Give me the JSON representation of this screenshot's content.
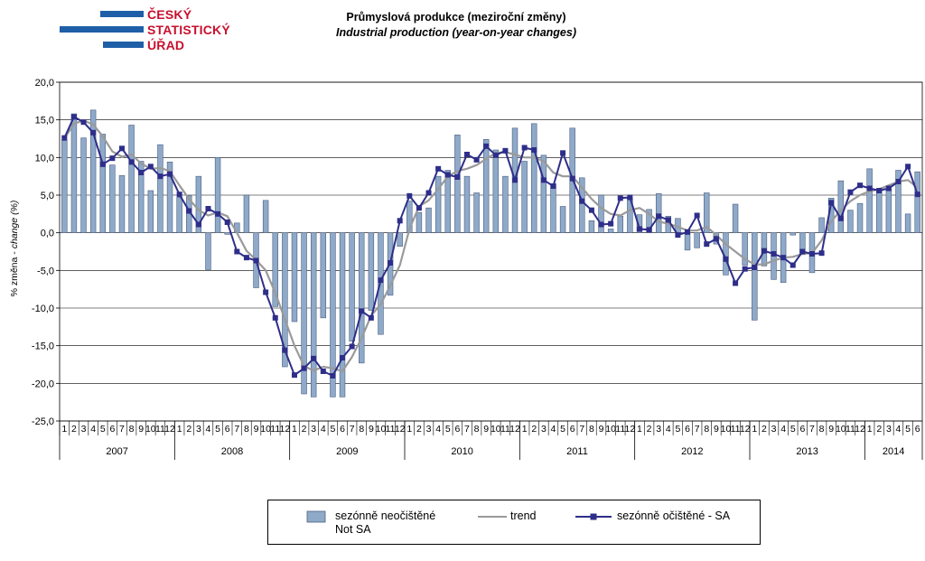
{
  "logo": {
    "line1": "ČESKÝ",
    "line2": "STATISTICKÝ",
    "line3": "ÚŘAD",
    "bar_color": "#1f5fa8",
    "text_color": "#c8102e"
  },
  "title": {
    "cz": "Průmyslová produkce (meziroční změny)",
    "en": "Industrial production (year-on-year changes)"
  },
  "chart_data": {
    "type": "bar",
    "ylabel_cz": "% změna - ",
    "ylabel_en": "change (%)",
    "ylim": [
      -25,
      20
    ],
    "yticks": [
      "20,0",
      "15,0",
      "10,0",
      "5,0",
      "0,0",
      "-5,0",
      "-10,0",
      "-15,0",
      "-20,0",
      "-25,0"
    ],
    "grid": "horizontal",
    "legend_position": "bottom",
    "years": [
      "2007",
      "2008",
      "2009",
      "2010",
      "2011",
      "2012",
      "2013",
      "2014"
    ],
    "months_per_year": [
      12,
      12,
      12,
      12,
      12,
      12,
      12,
      6
    ],
    "month_labels": [
      "1",
      "2",
      "3",
      "4",
      "5",
      "6",
      "7",
      "8",
      "9",
      "10",
      "11",
      "12"
    ],
    "series": [
      {
        "name": "sezónně neočištěné",
        "name_en": "Not SA",
        "type": "bar",
        "color": "#8fa9c9",
        "values": [
          12.3,
          15.8,
          12.6,
          16.3,
          13.1,
          9.0,
          7.6,
          14.3,
          9.5,
          5.6,
          11.7,
          9.4,
          4.7,
          4.9,
          7.5,
          -4.9,
          10.0,
          -0.2,
          1.3,
          5.0,
          -7.3,
          4.3,
          -9.8,
          -17.8,
          -11.8,
          -21.4,
          -21.8,
          -11.3,
          -21.8,
          -21.8,
          -14.4,
          -17.3,
          -10.3,
          -13.5,
          -8.3,
          -1.8,
          4.2,
          2.7,
          3.3,
          7.5,
          8.3,
          13.0,
          7.5,
          5.3,
          12.4,
          11.0,
          7.5,
          13.9,
          9.5,
          14.5,
          10.3,
          6.5,
          3.5,
          13.9,
          7.3,
          1.6,
          5.0,
          0.5,
          2.2,
          4.6,
          2.4,
          3.1,
          5.2,
          2.2,
          1.9,
          -2.3,
          -2.0,
          5.3,
          -1.5,
          -5.6,
          3.8,
          -4.3,
          -11.6,
          -4.4,
          -6.2,
          -6.6,
          -0.3,
          -2.9,
          -5.3,
          2.0,
          4.6,
          6.9,
          3.0,
          3.9,
          8.5,
          5.8,
          5.8,
          8.3,
          2.5,
          8.1
        ]
      },
      {
        "name": "trend",
        "type": "line",
        "color": "#9a9a9a",
        "values": [
          12.5,
          14.5,
          14.9,
          14.4,
          12.8,
          10.8,
          10.1,
          10.4,
          9.2,
          8.5,
          8.6,
          8.2,
          6.3,
          4.5,
          3.0,
          2.3,
          2.7,
          2.2,
          0.0,
          -2.4,
          -3.6,
          -5.0,
          -8.0,
          -11.5,
          -15.0,
          -17.7,
          -18.3,
          -17.8,
          -18.0,
          -18.4,
          -16.5,
          -14.0,
          -11.0,
          -9.5,
          -7.0,
          -4.3,
          0.5,
          3.5,
          4.3,
          5.8,
          7.5,
          8.2,
          8.5,
          9.0,
          9.8,
          10.6,
          10.7,
          10.4,
          10.0,
          10.0,
          9.5,
          8.0,
          7.5,
          7.5,
          6.0,
          4.5,
          3.3,
          2.5,
          2.3,
          3.0,
          3.3,
          2.5,
          1.5,
          1.2,
          0.8,
          0.3,
          0.3,
          0.8,
          -0.3,
          -1.5,
          -2.5,
          -3.5,
          -4.2,
          -4.2,
          -3.7,
          -3.3,
          -3.2,
          -2.8,
          -2.7,
          -1.0,
          1.5,
          3.0,
          4.2,
          5.0,
          5.5,
          5.8,
          6.3,
          6.8,
          7.0,
          6.0
        ]
      },
      {
        "name": "sezónně očištěné - SA",
        "type": "line",
        "color": "#2e2e8a",
        "values": [
          12.6,
          15.4,
          14.7,
          13.3,
          9.1,
          9.9,
          11.2,
          9.4,
          8.0,
          8.8,
          7.5,
          7.8,
          5.1,
          2.9,
          1.1,
          3.2,
          2.5,
          1.4,
          -2.5,
          -3.3,
          -3.7,
          -7.9,
          -11.3,
          -15.6,
          -18.9,
          -18.0,
          -16.7,
          -18.4,
          -19.0,
          -16.6,
          -15.1,
          -10.4,
          -11.3,
          -6.3,
          -4.0,
          1.6,
          4.9,
          3.3,
          5.3,
          8.5,
          7.7,
          7.4,
          10.4,
          9.7,
          11.5,
          10.3,
          10.9,
          7.0,
          11.3,
          11.0,
          7.0,
          6.2,
          10.6,
          7.2,
          4.2,
          3.0,
          1.1,
          1.2,
          4.6,
          4.7,
          0.5,
          0.4,
          2.2,
          1.7,
          -0.3,
          0.1,
          2.3,
          -1.5,
          -0.8,
          -3.5,
          -6.7,
          -4.8,
          -4.6,
          -2.4,
          -2.8,
          -3.3,
          -4.3,
          -2.5,
          -2.8,
          -2.7,
          4.0,
          1.9,
          5.4,
          6.3,
          5.9,
          5.6,
          5.9,
          6.8,
          8.8,
          5.1
        ]
      }
    ]
  },
  "legend": {
    "bar_label_1": "sezónně neočištěné",
    "bar_label_2": "Not SA",
    "trend_label": "trend",
    "sa_label": "sezónně očištěné - SA"
  }
}
